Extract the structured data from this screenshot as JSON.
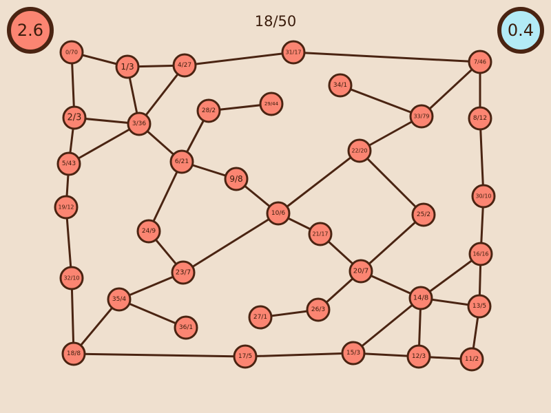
{
  "game": {
    "counter": "18/50",
    "score_left": "2.6",
    "score_right": "0.4",
    "colors": {
      "background": "#efe0cf",
      "node_fill": "#fb8572",
      "stroke": "#4a2412",
      "score_left_fill": "#fb8572",
      "score_right_fill": "#b3ebf6"
    }
  },
  "nodes": [
    {
      "id": "n0_70",
      "label": "0/70"
    },
    {
      "id": "n1_3",
      "label": "1/3"
    },
    {
      "id": "n4_27",
      "label": "4/27"
    },
    {
      "id": "n31_17",
      "label": "31/17"
    },
    {
      "id": "n7_46",
      "label": "7/46"
    },
    {
      "id": "n34_1",
      "label": "34/1"
    },
    {
      "id": "n29_44",
      "label": "29/44"
    },
    {
      "id": "n28_2",
      "label": "28/2"
    },
    {
      "id": "n2_3",
      "label": "2/3"
    },
    {
      "id": "n3_36",
      "label": "3/36"
    },
    {
      "id": "n33_79",
      "label": "33/79"
    },
    {
      "id": "n8_12",
      "label": "8/12"
    },
    {
      "id": "n22_20",
      "label": "22/20"
    },
    {
      "id": "n5_43",
      "label": "5/43"
    },
    {
      "id": "n6_21",
      "label": "6/21"
    },
    {
      "id": "n9_8",
      "label": "9/8"
    },
    {
      "id": "n30_10",
      "label": "30/10"
    },
    {
      "id": "n19_12",
      "label": "19/12"
    },
    {
      "id": "n10_6",
      "label": "10/6"
    },
    {
      "id": "n25_2",
      "label": "25/2"
    },
    {
      "id": "n24_9",
      "label": "24/9"
    },
    {
      "id": "n21_17",
      "label": "21/17"
    },
    {
      "id": "n16_16",
      "label": "16/16"
    },
    {
      "id": "n20_7",
      "label": "20/7"
    },
    {
      "id": "n23_7",
      "label": "23/7"
    },
    {
      "id": "n32_10",
      "label": "32/10"
    },
    {
      "id": "n35_4",
      "label": "35/4"
    },
    {
      "id": "n14_8",
      "label": "14/8"
    },
    {
      "id": "n13_5",
      "label": "13/5"
    },
    {
      "id": "n26_3",
      "label": "26/3"
    },
    {
      "id": "n27_1",
      "label": "27/1"
    },
    {
      "id": "n36_1",
      "label": "36/1"
    },
    {
      "id": "n18_8",
      "label": "18/8"
    },
    {
      "id": "n17_5",
      "label": "17/5"
    },
    {
      "id": "n15_3",
      "label": "15/3"
    },
    {
      "id": "n12_3",
      "label": "12/3"
    },
    {
      "id": "n11_2",
      "label": "11/2"
    }
  ],
  "edges": [
    [
      "n0_70",
      "n1_3"
    ],
    [
      "n0_70",
      "n2_3"
    ],
    [
      "n1_3",
      "n4_27"
    ],
    [
      "n1_3",
      "n3_36"
    ],
    [
      "n4_27",
      "n31_17"
    ],
    [
      "n4_27",
      "n3_36"
    ],
    [
      "n31_17",
      "n7_46"
    ],
    [
      "n7_46",
      "n33_79"
    ],
    [
      "n7_46",
      "n8_12"
    ],
    [
      "n34_1",
      "n33_79"
    ],
    [
      "n28_2",
      "n29_44"
    ],
    [
      "n28_2",
      "n6_21"
    ],
    [
      "n2_3",
      "n3_36"
    ],
    [
      "n2_3",
      "n5_43"
    ],
    [
      "n3_36",
      "n5_43"
    ],
    [
      "n3_36",
      "n6_21"
    ],
    [
      "n33_79",
      "n22_20"
    ],
    [
      "n8_12",
      "n30_10"
    ],
    [
      "n22_20",
      "n10_6"
    ],
    [
      "n22_20",
      "n25_2"
    ],
    [
      "n5_43",
      "n19_12"
    ],
    [
      "n6_21",
      "n9_8"
    ],
    [
      "n6_21",
      "n24_9"
    ],
    [
      "n9_8",
      "n10_6"
    ],
    [
      "n30_10",
      "n16_16"
    ],
    [
      "n19_12",
      "n32_10"
    ],
    [
      "n10_6",
      "n21_17"
    ],
    [
      "n10_6",
      "n23_7"
    ],
    [
      "n25_2",
      "n20_7"
    ],
    [
      "n24_9",
      "n23_7"
    ],
    [
      "n21_17",
      "n20_7"
    ],
    [
      "n16_16",
      "n14_8"
    ],
    [
      "n16_16",
      "n13_5"
    ],
    [
      "n20_7",
      "n14_8"
    ],
    [
      "n20_7",
      "n26_3"
    ],
    [
      "n23_7",
      "n35_4"
    ],
    [
      "n32_10",
      "n18_8"
    ],
    [
      "n35_4",
      "n36_1"
    ],
    [
      "n35_4",
      "n18_8"
    ],
    [
      "n14_8",
      "n13_5"
    ],
    [
      "n14_8",
      "n15_3"
    ],
    [
      "n14_8",
      "n12_3"
    ],
    [
      "n13_5",
      "n11_2"
    ],
    [
      "n26_3",
      "n27_1"
    ],
    [
      "n18_8",
      "n17_5"
    ],
    [
      "n17_5",
      "n15_3"
    ],
    [
      "n15_3",
      "n12_3"
    ],
    [
      "n12_3",
      "n11_2"
    ]
  ]
}
